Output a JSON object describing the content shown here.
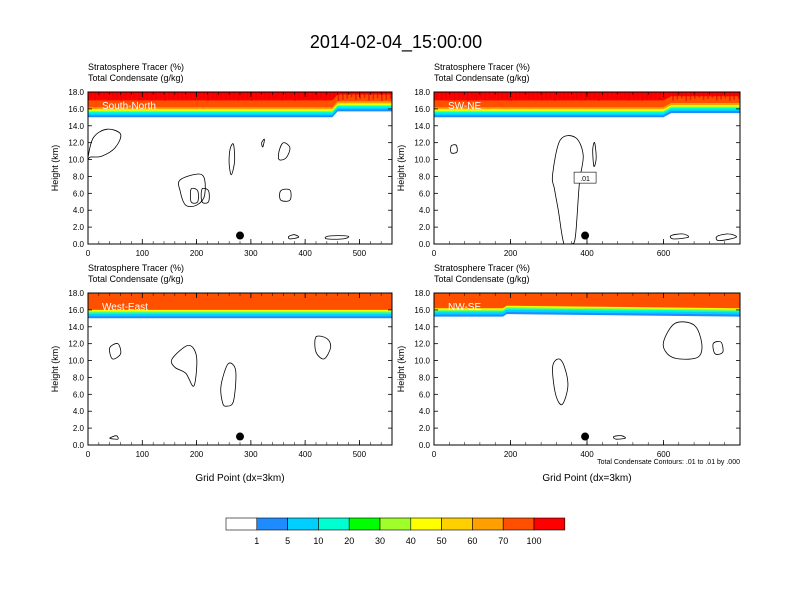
{
  "figure": {
    "title": "2014-02-04_15:00:00",
    "contour_info": "Total Condensate Contours: .01 to .01 by .000",
    "colorbar": {
      "colors": [
        "#ffffff",
        "#1e8cff",
        "#00cfff",
        "#00ffd0",
        "#00ff00",
        "#a0ff28",
        "#ffff00",
        "#ffd000",
        "#ffa000",
        "#ff5000",
        "#ff0000"
      ],
      "labels": [
        "1",
        "5",
        "10",
        "20",
        "30",
        "40",
        "50",
        "60",
        "70",
        "100"
      ]
    }
  },
  "chart_data": [
    {
      "type": "heatmap",
      "panel": "South-North",
      "title_line1": "Stratosphere Tracer   (%)",
      "title_line2": "Total Condensate   (g/kg)",
      "xlabel": "",
      "ylabel": "Height (km)",
      "xlim": [
        0,
        560
      ],
      "ylim": [
        0,
        18
      ],
      "xticks": [
        "0",
        "100",
        "200",
        "300",
        "400",
        "500"
      ],
      "yticks": [
        "0.0",
        "2.0",
        "4.0",
        "6.0",
        "8.0",
        "10.0",
        "12.0",
        "14.0",
        "16.0",
        "18.0"
      ],
      "tracer_top_km": 18.0,
      "tropopause_km": [
        [
          0,
          15.8
        ],
        [
          450,
          15.8
        ],
        [
          460,
          16.5
        ],
        [
          560,
          16.5
        ]
      ],
      "marker": {
        "x": 280,
        "y": 1.0
      },
      "contour_label": ""
    },
    {
      "type": "heatmap",
      "panel": "SW-NE",
      "title_line1": "Stratosphere Tracer   (%)",
      "title_line2": "Total Condensate   (g/kg)",
      "xlabel": "",
      "ylabel": "Height (km)",
      "xlim": [
        0,
        800
      ],
      "ylim": [
        0,
        18
      ],
      "xticks": [
        "0",
        "200",
        "400",
        "600"
      ],
      "yticks": [
        "0.0",
        "2.0",
        "4.0",
        "6.0",
        "8.0",
        "10.0",
        "12.0",
        "14.0",
        "16.0",
        "18.0"
      ],
      "tracer_top_km": 18.0,
      "tropopause_km": [
        [
          0,
          15.8
        ],
        [
          600,
          15.8
        ],
        [
          620,
          16.3
        ],
        [
          800,
          16.3
        ]
      ],
      "marker": {
        "x": 395,
        "y": 1.0
      },
      "contour_label": ".01"
    },
    {
      "type": "heatmap",
      "panel": "West-East",
      "title_line1": "Stratosphere Tracer   (%)",
      "title_line2": "Total Condensate   (g/kg)",
      "xlabel": "Grid Point (dx=3km)",
      "ylabel": "Height (km)",
      "xlim": [
        0,
        560
      ],
      "ylim": [
        0,
        18
      ],
      "xticks": [
        "0",
        "100",
        "200",
        "300",
        "400",
        "500"
      ],
      "yticks": [
        "0.0",
        "2.0",
        "4.0",
        "6.0",
        "8.0",
        "10.0",
        "12.0",
        "14.0",
        "16.0",
        "18.0"
      ],
      "tracer_top_km": 18.0,
      "tropopause_km": [
        [
          0,
          15.8
        ],
        [
          560,
          15.8
        ]
      ],
      "marker": {
        "x": 280,
        "y": 1.0
      },
      "contour_label": ""
    },
    {
      "type": "heatmap",
      "panel": "NW-SE",
      "title_line1": "Stratosphere Tracer   (%)",
      "title_line2": "Total Condensate   (g/kg)",
      "xlabel": "Grid Point (dx=3km)",
      "ylabel": "Height (km)",
      "xlim": [
        0,
        800
      ],
      "ylim": [
        0,
        18
      ],
      "xticks": [
        "0",
        "200",
        "400",
        "600"
      ],
      "yticks": [
        "0.0",
        "2.0",
        "4.0",
        "6.0",
        "8.0",
        "10.0",
        "12.0",
        "14.0",
        "16.0",
        "18.0"
      ],
      "tracer_top_km": 18.0,
      "tropopause_km": [
        [
          0,
          16.0
        ],
        [
          180,
          16.0
        ],
        [
          190,
          16.3
        ],
        [
          800,
          16.0
        ]
      ],
      "marker": {
        "x": 395,
        "y": 1.0
      },
      "contour_label": ""
    }
  ]
}
